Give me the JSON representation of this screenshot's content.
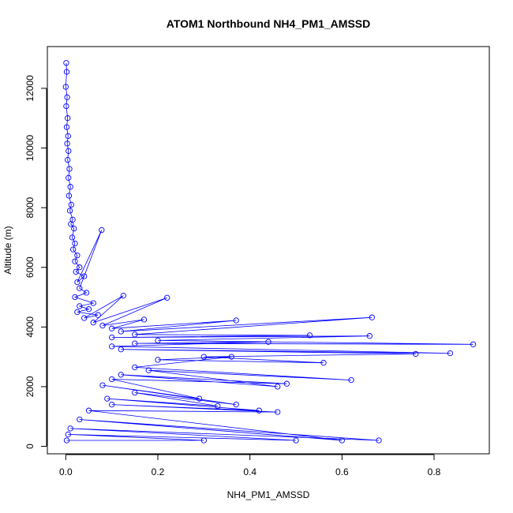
{
  "chart_data": {
    "type": "line",
    "title": "ATOM1 Northbound NH4_PM1_AMSSD",
    "xlabel": "NH4_PM1_AMSSD",
    "ylabel": "Altitude (m)",
    "xlim": [
      -0.04,
      0.92
    ],
    "ylim": [
      -250,
      13400
    ],
    "xticks": [
      "0.0",
      "0.2",
      "0.4",
      "0.6",
      "0.8"
    ],
    "yticks": [
      "0",
      "2000",
      "4000",
      "6000",
      "8000",
      "10000",
      "12000"
    ],
    "grid": false,
    "legend": "none",
    "series_color": "#0000ff",
    "series": [
      {
        "x": [
          0.001,
          0.002,
          0.0,
          0.003,
          0.001,
          0.004,
          0.002,
          0.005,
          0.003,
          0.006,
          0.004,
          0.008,
          0.006,
          0.01,
          0.007,
          0.012,
          0.009,
          0.015,
          0.011,
          0.018,
          0.014,
          0.02,
          0.016,
          0.025,
          0.02,
          0.03,
          0.022,
          0.04,
          0.025,
          0.078,
          0.03,
          0.045,
          0.02,
          0.06,
          0.03,
          0.05,
          0.025,
          0.07,
          0.04,
          0.125,
          0.06,
          0.22,
          0.08,
          0.17,
          0.1,
          0.37,
          0.12,
          0.665,
          0.15,
          0.53,
          0.1,
          0.66,
          0.2,
          0.885,
          0.15,
          0.44,
          0.1,
          0.835,
          0.12,
          0.76,
          0.3,
          0.56,
          0.2,
          0.36,
          0.15,
          0.62,
          0.18,
          0.46,
          0.12,
          0.48,
          0.1,
          0.29,
          0.08,
          0.37,
          0.15,
          0.33,
          0.09,
          0.42,
          0.1,
          0.46,
          0.05,
          0.6,
          0.03,
          0.68,
          0.01,
          0.5,
          0.005,
          0.3,
          0.002
        ],
        "y": [
          12850,
          12550,
          12050,
          11700,
          11400,
          11000,
          10700,
          10400,
          10150,
          9900,
          9600,
          9300,
          9000,
          8700,
          8400,
          8100,
          7900,
          7600,
          7450,
          7300,
          7000,
          6800,
          6600,
          6400,
          6200,
          6000,
          5850,
          5700,
          5500,
          7250,
          5300,
          5150,
          5000,
          4800,
          4700,
          4600,
          4500,
          4400,
          4300,
          5050,
          4150,
          4980,
          4050,
          4250,
          3950,
          4220,
          3850,
          4320,
          3750,
          3720,
          3650,
          3700,
          3550,
          3420,
          3450,
          3500,
          3350,
          3120,
          3250,
          3100,
          3000,
          2800,
          2900,
          3000,
          2650,
          2220,
          2550,
          2000,
          2400,
          2100,
          2250,
          1600,
          2050,
          1400,
          1800,
          1350,
          1600,
          1200,
          1400,
          1150,
          1200,
          200,
          900,
          200,
          600,
          200,
          400,
          200,
          200
        ]
      }
    ]
  }
}
